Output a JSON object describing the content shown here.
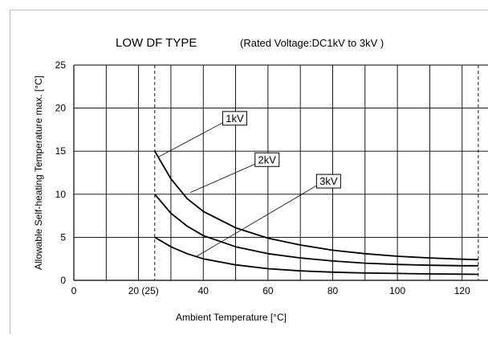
{
  "chart_data": {
    "type": "line",
    "title": "LOW DF TYPE",
    "subtitle": "(Rated Voltage:DC1kV to 3kV )",
    "xlabel": "Ambient Temperature [°C]",
    "ylabel": "Allowable Self-heating Temperature max. [°C]",
    "xlim": [
      0,
      128
    ],
    "ylim": [
      0,
      25
    ],
    "xticks": [
      {
        "value": 0,
        "label": "0"
      },
      {
        "value": 25,
        "label": "20 (25)"
      },
      {
        "value": 40,
        "label": "40"
      },
      {
        "value": 60,
        "label": "60"
      },
      {
        "value": 80,
        "label": "80"
      },
      {
        "value": 100,
        "label": "100"
      },
      {
        "value": 120,
        "label": "120"
      }
    ],
    "yticks": [
      0,
      5,
      10,
      15,
      20,
      25
    ],
    "x_gridlines": [
      10,
      20,
      30,
      40,
      50,
      60,
      70,
      80,
      90,
      100,
      110,
      120
    ],
    "x_dashed_lines": [
      25,
      125
    ],
    "grid": true,
    "series": [
      {
        "name": "1kV",
        "x": [
          25,
          30,
          35,
          40,
          50,
          60,
          70,
          80,
          90,
          100,
          110,
          120,
          125
        ],
        "y": [
          15,
          11.8,
          9.5,
          8,
          6.1,
          4.9,
          4.1,
          3.5,
          3.1,
          2.8,
          2.6,
          2.45,
          2.4
        ]
      },
      {
        "name": "2kV",
        "x": [
          25,
          30,
          35,
          40,
          50,
          60,
          70,
          80,
          90,
          100,
          110,
          120,
          125
        ],
        "y": [
          10,
          7.8,
          6.3,
          5.2,
          3.9,
          3.1,
          2.6,
          2.25,
          2.0,
          1.85,
          1.75,
          1.7,
          1.7
        ]
      },
      {
        "name": "3kV",
        "x": [
          25,
          30,
          35,
          40,
          50,
          60,
          70,
          80,
          90,
          100,
          110,
          120,
          125
        ],
        "y": [
          5,
          3.9,
          3.1,
          2.5,
          1.8,
          1.35,
          1.1,
          0.95,
          0.85,
          0.8,
          0.75,
          0.72,
          0.7
        ]
      }
    ],
    "annotations": [
      {
        "text": "1kV",
        "series": "1kV",
        "point": [
          26,
          14.3
        ],
        "label_at": [
          46,
          18.3
        ]
      },
      {
        "text": "2kV",
        "series": "2kV",
        "point": [
          36,
          10.2
        ],
        "label_at": [
          56,
          13.5
        ]
      },
      {
        "text": "3kV",
        "series": "3kV",
        "point": [
          38,
          2.8
        ],
        "label_at": [
          75,
          11
        ]
      }
    ]
  }
}
